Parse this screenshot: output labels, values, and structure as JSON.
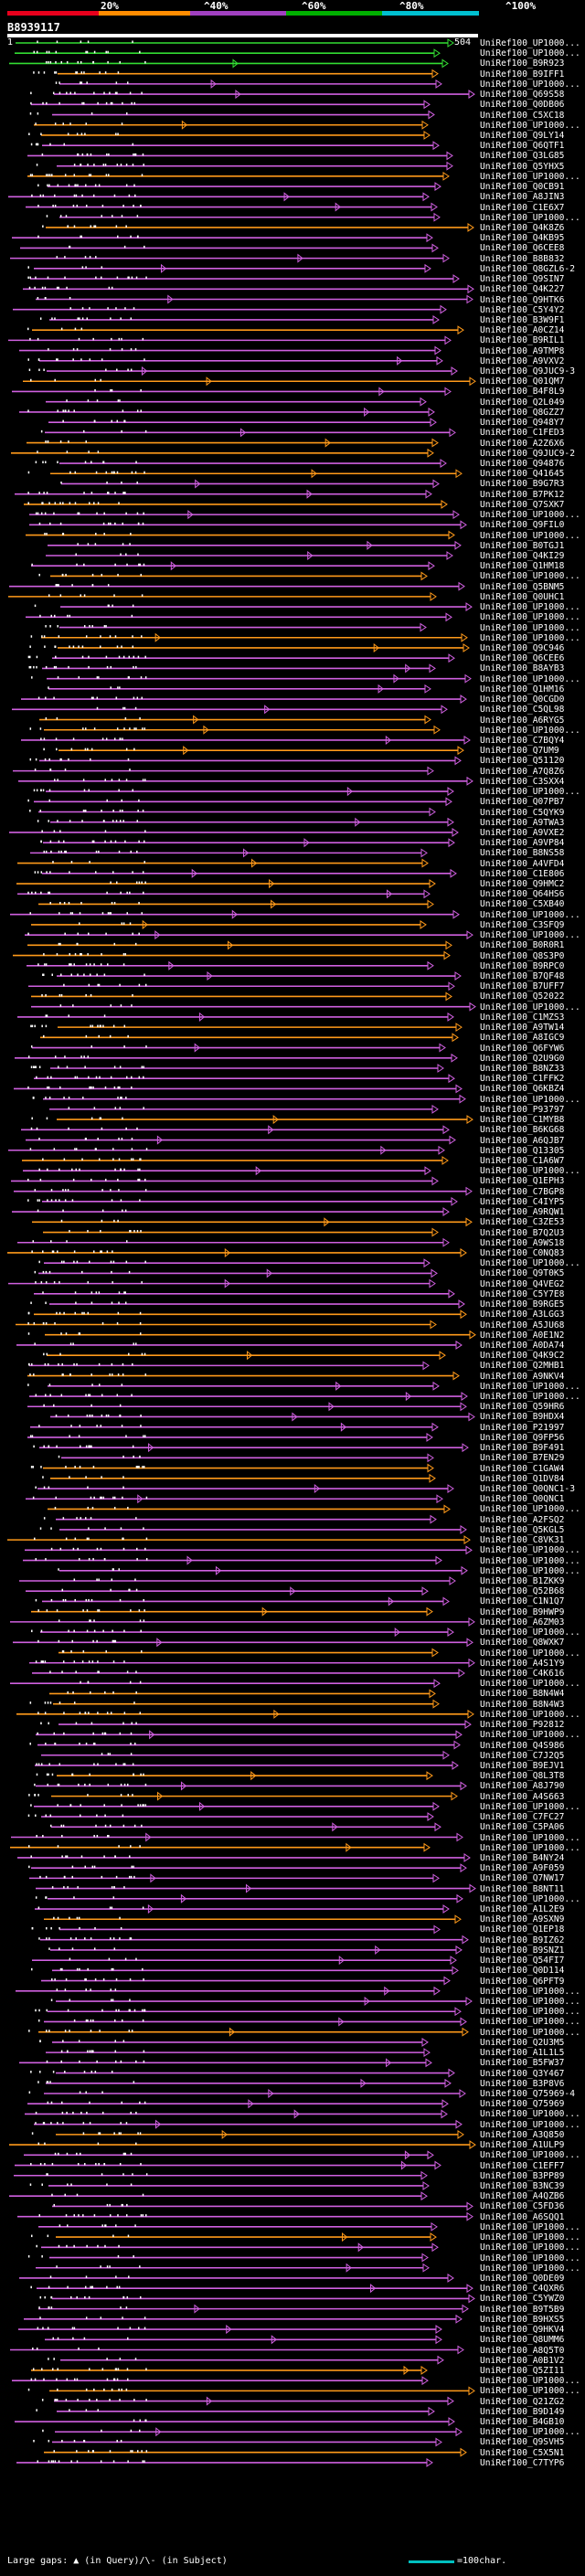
{
  "legend": {
    "ticks": [
      "20%",
      "^40%",
      "^60%",
      "^80%",
      "^100%"
    ],
    "colors": [
      "#e8001c",
      "#ff8c00",
      "#a040c0",
      "#00b000",
      "#00c0d0"
    ]
  },
  "query": {
    "id": "B8939117",
    "start": "1",
    "end": "504"
  },
  "hit_colors": {
    "green": "#33dd33",
    "pink": "#d060e0",
    "orange": "#ff9a1a"
  },
  "labels": [
    "UniRef100_UP1000...",
    "UniRef100_UP1000...",
    "UniRef100_B9R923",
    "UniRef100_B9IFF1",
    "UniRef100_UP1000...",
    "UniRef100_Q69S58",
    "UniRef100_Q0DB06",
    "UniRef100_C5XC18",
    "UniRef100_UP1000...",
    "UniRef100_Q9LY14",
    "UniRef100_Q6QTF1",
    "UniRef100_Q3LG85",
    "UniRef100_Q5YHX5",
    "UniRef100_UP1000...",
    "UniRef100_Q0CB91",
    "UniRef100_A8JIN3",
    "UniRef100_C1E6X7",
    "UniRef100_UP1000...",
    "UniRef100_Q4K8Z6",
    "UniRef100_Q4KB95",
    "UniRef100_Q6CEE8",
    "UniRef100_B8B832",
    "UniRef100_Q8GZL6-2",
    "UniRef100_Q9SIN7",
    "UniRef100_Q4K227",
    "UniRef100_Q9HTK6",
    "UniRef100_C5Y4Y2",
    "UniRef100_B3W9F1",
    "UniRef100_A0CZ14",
    "UniRef100_B9RIL1",
    "UniRef100_A9TMP8",
    "UniRef100_A9VXV2",
    "UniRef100_Q9JUC9-3",
    "UniRef100_Q01QM7",
    "UniRef100_B4F8L9",
    "UniRef100_Q2L049",
    "UniRef100_Q8GZZ7",
    "UniRef100_Q948Y7",
    "UniRef100_C1FED3",
    "UniRef100_A2Z6X6",
    "UniRef100_Q9JUC9-2",
    "UniRef100_Q94876",
    "UniRef100_Q41645",
    "UniRef100_B9G7R3",
    "UniRef100_B7PK12",
    "UniRef100_Q7SXK7",
    "UniRef100_UP1000...",
    "UniRef100_Q9FIL0",
    "UniRef100_UP1000...",
    "UniRef100_B0TGJ1",
    "UniRef100_Q4KI29",
    "UniRef100_Q1HM18",
    "UniRef100_UP1000...",
    "UniRef100_Q5BNM5",
    "UniRef100_Q0UHC1",
    "UniRef100_UP1000...",
    "UniRef100_UP1000...",
    "UniRef100_UP1000...",
    "UniRef100_UP1000...",
    "UniRef100_Q9C946",
    "UniRef100_Q6CEE6",
    "UniRef100_B8AYB3",
    "UniRef100_UP1000...",
    "UniRef100_Q1HM16",
    "UniRef100_Q0CGD0",
    "UniRef100_C5QL98",
    "UniRef100_A6RYG5",
    "UniRef100_UP1000...",
    "UniRef100_C7BQY4",
    "UniRef100_Q7UM9",
    "UniRef100_Q51120",
    "UniRef100_A7Q8Z6",
    "UniRef100_C3SXX4",
    "UniRef100_UP1000...",
    "UniRef100_Q07PB7",
    "UniRef100_C5QYK9",
    "UniRef100_A9TWA3",
    "UniRef100_A9VXE2",
    "UniRef100_A9VP84",
    "UniRef100_B8NS58",
    "UniRef100_A4VFD4",
    "UniRef100_C1E806",
    "UniRef100_Q9HMC2",
    "UniRef100_Q64HS6",
    "UniRef100_C5XB40",
    "UniRef100_UP1000...",
    "UniRef100_C3SFQ9",
    "UniRef100_UP1000...",
    "UniRef100_B0R0R1",
    "UniRef100_Q8S3P0",
    "UniRef100_B9RPC0",
    "UniRef100_B7QF48",
    "UniRef100_B7UFF7",
    "UniRef100_Q52022",
    "UniRef100_UP1000...",
    "UniRef100_C1MZS3",
    "UniRef100_A9TW14",
    "UniRef100_A8IGC9",
    "UniRef100_Q6FYW6",
    "UniRef100_Q2U9G0",
    "UniRef100_B8NZ33",
    "UniRef100_C1FFK2",
    "UniRef100_Q6KBZ4",
    "UniRef100_UP1000...",
    "UniRef100_P93797",
    "UniRef100_C1MYB8",
    "UniRef100_B6KG68",
    "UniRef100_A6QJB7",
    "UniRef100_Q13305",
    "UniRef100_C1A6W7",
    "UniRef100_UP1000...",
    "UniRef100_Q1EPH3",
    "UniRef100_C7BGP8",
    "UniRef100_C4IYP5",
    "UniRef100_A9RQW1",
    "UniRef100_C3ZE53",
    "UniRef100_B7Q2U3",
    "UniRef100_A9WS18",
    "UniRef100_C0NQ83",
    "UniRef100_UP1000...",
    "UniRef100_Q9T0K5",
    "UniRef100_Q4VEG2",
    "UniRef100_C5Y7E8",
    "UniRef100_B9RGE5",
    "UniRef100_A3LGG3",
    "UniRef100_A5JU68",
    "UniRef100_A0E1N2",
    "UniRef100_A0DA74",
    "UniRef100_Q4K9C2",
    "UniRef100_Q2MHB1",
    "UniRef100_A9NKV4",
    "UniRef100_UP1000...",
    "UniRef100_UP1000...",
    "UniRef100_Q59HR6",
    "UniRef100_B9HDX4",
    "UniRef100_P21997",
    "UniRef100_Q9FP56",
    "UniRef100_B9F491",
    "UniRef100_B7EN29",
    "UniRef100_C1GAW4",
    "UniRef100_Q1DV84",
    "UniRef100_Q0QNC1-3",
    "UniRef100_Q0QNC1",
    "UniRef100_UP1000...",
    "UniRef100_A2FSQ2",
    "UniRef100_Q5KGL5",
    "UniRef100_C8VK31",
    "UniRef100_UP1000...",
    "UniRef100_UP1000...",
    "UniRef100_UP1000...",
    "UniRef100_B1ZKK9",
    "UniRef100_Q52B68",
    "UniRef100_C1N1Q7",
    "UniRef100_B9HWP9",
    "UniRef100_A6ZM03",
    "UniRef100_UP1000...",
    "UniRef100_Q8WXK7",
    "UniRef100_UP1000...",
    "UniRef100_A4S1Y9",
    "UniRef100_C4K616",
    "UniRef100_UP1000...",
    "UniRef100_B8N4W4",
    "UniRef100_B8N4W3",
    "UniRef100_UP1000...",
    "UniRef100_P92812",
    "UniRef100_UP1000...",
    "UniRef100_Q4S986",
    "UniRef100_C7J2Q5",
    "UniRef100_B9EJV1",
    "UniRef100_Q8L3T8",
    "UniRef100_A8J790",
    "UniRef100_A4S663",
    "UniRef100_UP1000...",
    "UniRef100_C7FC27",
    "UniRef100_C5PA06",
    "UniRef100_UP1000...",
    "UniRef100_UP1000...",
    "UniRef100_B4NY24",
    "UniRef100_A9F059",
    "UniRef100_Q7NW17",
    "UniRef100_B8NT11",
    "UniRef100_UP1000...",
    "UniRef100_A1L2E9",
    "UniRef100_A9SXN9",
    "UniRef100_Q1EP18",
    "UniRef100_B9IZ62",
    "UniRef100_B9SNZ1",
    "UniRef100_Q54FI7",
    "UniRef100_Q0D114",
    "UniRef100_Q6PFT9",
    "UniRef100_UP1000...",
    "UniRef100_UP1000...",
    "UniRef100_UP1000...",
    "UniRef100_UP1000...",
    "UniRef100_UP1000...",
    "UniRef100_Q2U3M5",
    "UniRef100_A1L1L5",
    "UniRef100_B5FW37",
    "UniRef100_Q3Y467",
    "UniRef100_B3P8V6",
    "UniRef100_Q75969-4",
    "UniRef100_Q75969",
    "UniRef100_UP1000...",
    "UniRef100_UP1000...",
    "UniRef100_A3Q850",
    "UniRef100_A1ULP9",
    "UniRef100_UP1000...",
    "UniRef100_C1EFF7",
    "UniRef100_B3PP89",
    "UniRef100_B3NC39",
    "UniRef100_A4QZB6",
    "UniRef100_C5FD36",
    "UniRef100_A6SQQ1",
    "UniRef100_UP1000...",
    "UniRef100_UP1000...",
    "UniRef100_UP1000...",
    "UniRef100_UP1000...",
    "UniRef100_UP1000...",
    "UniRef100_Q0DE09",
    "UniRef100_C4QXR6",
    "UniRef100_C5YWZ0",
    "UniRef100_B9T5B9",
    "UniRef100_B9HXS5",
    "UniRef100_Q9HKV4",
    "UniRef100_Q8UMM6",
    "UniRef100_A8Q5T0",
    "UniRef100_A0B1V2",
    "UniRef100_Q5ZI11",
    "UniRef100_UP1000...",
    "UniRef100_UP1000...",
    "UniRef100_Q21ZG2",
    "UniRef100_B9D149",
    "UniRef100_B4GB10",
    "UniRef100_UP1000...",
    "UniRef100_Q9SVH5",
    "UniRef100_C5X5N1",
    "UniRef100_C7TYP6"
  ],
  "footer": {
    "gaps_text": "Large gaps: ▲ (in Query)/\\- (in Subject)",
    "scale_text": "=100char."
  }
}
